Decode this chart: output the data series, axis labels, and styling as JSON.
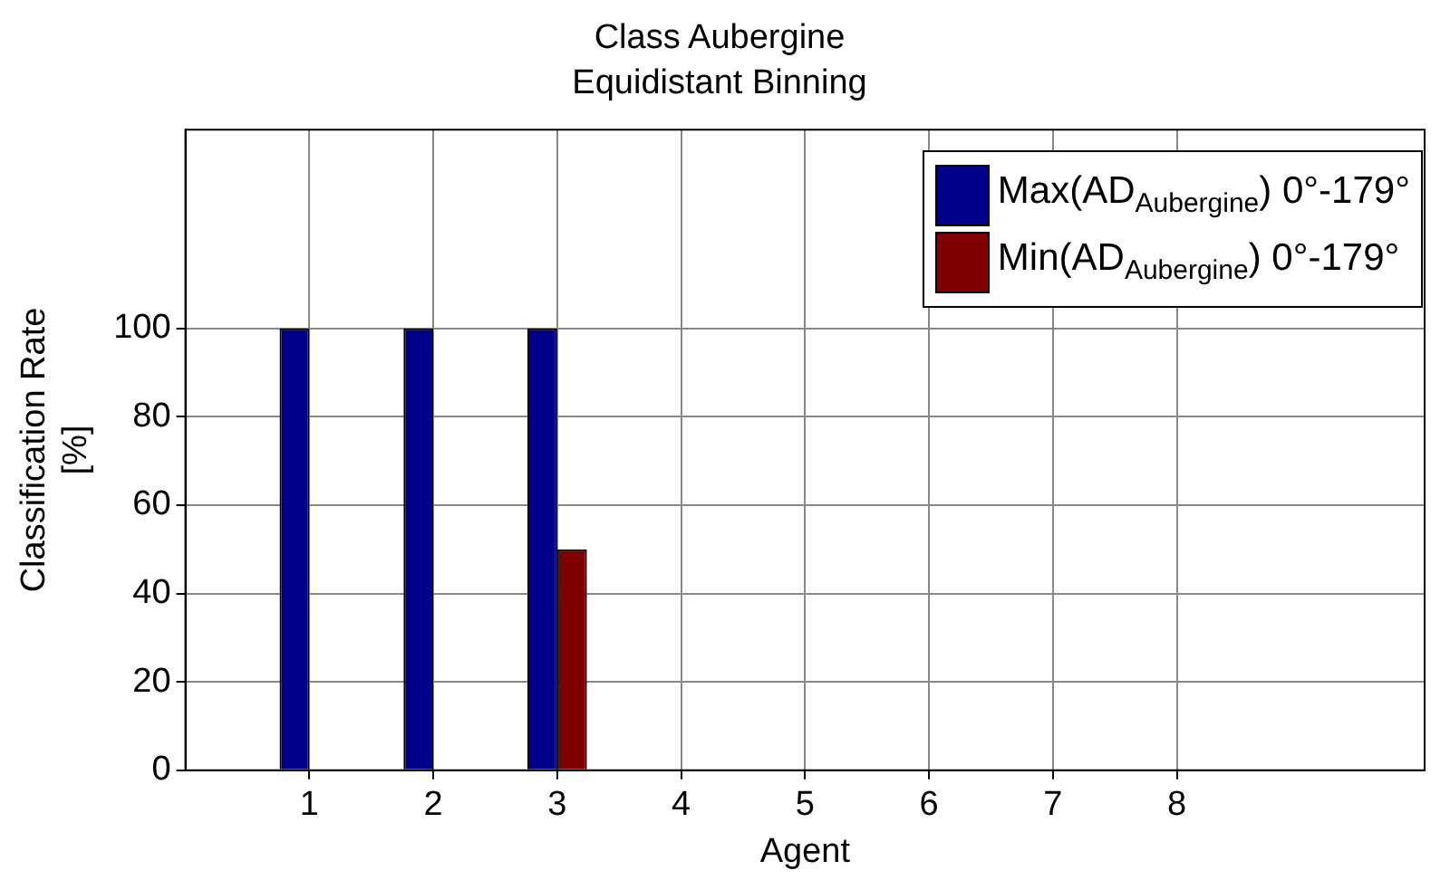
{
  "chart_data": {
    "type": "bar",
    "title": "Class Aubergine",
    "subtitle": "Equidistant Binning",
    "xlabel": "Agent",
    "ylabel": "Classification Rate [%]",
    "x": [
      1,
      2,
      3,
      4,
      5,
      6,
      7,
      8
    ],
    "series": [
      {
        "name": "Max(AD$_{Aubergine}$) 0°-179°",
        "color": "#00008b",
        "values": [
          100,
          100,
          100,
          0,
          0,
          0,
          0,
          0
        ]
      },
      {
        "name": "Min(AD$_{Aubergine}$) 0°-179°",
        "color": "#800000",
        "values": [
          0,
          0,
          50,
          0,
          0,
          0,
          0,
          0
        ]
      }
    ],
    "xlim": [
      0,
      10
    ],
    "xticks": [
      1,
      2,
      3,
      4,
      5,
      6,
      7,
      8
    ],
    "ylim": [
      0,
      145
    ],
    "yticks": [
      0,
      20,
      40,
      60,
      80,
      100
    ],
    "grid": true,
    "legend": "top right"
  }
}
